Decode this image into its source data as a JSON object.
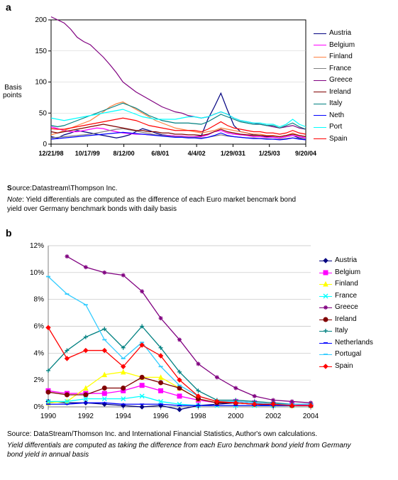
{
  "panel_a": {
    "label": "a",
    "ylabel_line1": "Basis",
    "ylabel_line2": "points",
    "ylim": [
      0,
      200
    ],
    "ytick_step": 50,
    "grid_color": "#cccccc",
    "background_color": "#ffffff",
    "axis_color": "#000000",
    "label_fontsize": 10,
    "x_ticks": [
      "12/21/98",
      "10/17/99",
      "8/12/00",
      "6/8/01",
      "4/4/02",
      "1/29/031",
      "1/25/03",
      "9/20/04"
    ],
    "legend_order": [
      "Austria",
      "Belgium",
      "Finland",
      "France",
      "Greece",
      "Ireland",
      "Italy",
      "Neth",
      "Port",
      "Spain"
    ],
    "series": {
      "Austria": {
        "color": "#000080",
        "values": [
          12,
          10,
          15,
          18,
          22,
          20,
          18,
          16,
          14,
          12,
          10,
          12,
          15,
          20,
          25,
          22,
          18,
          15,
          14,
          13,
          12,
          11,
          12,
          13,
          40,
          60,
          82,
          55,
          30,
          20,
          18,
          15,
          14,
          12,
          11,
          10,
          12,
          14,
          10,
          8
        ]
      },
      "Belgium": {
        "color": "#ff00ff",
        "values": [
          28,
          25,
          22,
          20,
          20,
          22,
          24,
          26,
          25,
          22,
          20,
          18,
          17,
          16,
          16,
          15,
          15,
          14,
          14,
          13,
          13,
          12,
          12,
          12,
          15,
          20,
          22,
          18,
          16,
          15,
          14,
          12,
          12,
          11,
          11,
          10,
          12,
          14,
          12,
          10
        ]
      },
      "Finland": {
        "color": "#ff8040",
        "values": [
          15,
          18,
          22,
          26,
          30,
          34,
          38,
          45,
          52,
          60,
          65,
          68,
          62,
          56,
          50,
          44,
          38,
          34,
          30,
          26,
          24,
          22,
          20,
          18,
          20,
          22,
          26,
          24,
          22,
          20,
          18,
          16,
          16,
          14,
          14,
          12,
          14,
          18,
          14,
          12
        ]
      },
      "France": {
        "color": "#808080",
        "values": [
          10,
          11,
          12,
          13,
          14,
          15,
          16,
          18,
          20,
          22,
          24,
          25,
          23,
          21,
          19,
          17,
          15,
          14,
          13,
          12,
          12,
          11,
          11,
          10,
          11,
          13,
          15,
          13,
          12,
          11,
          10,
          10,
          9,
          9,
          8,
          8,
          9,
          10,
          9,
          8
        ]
      },
      "Greece": {
        "color": "#800080",
        "values": [
          205,
          200,
          195,
          185,
          172,
          165,
          160,
          150,
          140,
          128,
          115,
          100,
          92,
          84,
          78,
          72,
          66,
          60,
          56,
          52,
          50,
          46,
          44,
          42,
          44,
          48,
          52,
          48,
          42,
          38,
          36,
          34,
          32,
          30,
          28,
          26,
          28,
          30,
          26,
          24
        ]
      },
      "Ireland": {
        "color": "#800000",
        "values": [
          20,
          18,
          20,
          22,
          24,
          26,
          28,
          30,
          32,
          30,
          28,
          26,
          24,
          22,
          22,
          20,
          20,
          18,
          18,
          16,
          16,
          15,
          15,
          14,
          16,
          20,
          24,
          20,
          18,
          16,
          15,
          14,
          14,
          13,
          13,
          12,
          14,
          16,
          14,
          12
        ]
      },
      "Italy": {
        "color": "#008080",
        "values": [
          30,
          28,
          30,
          34,
          38,
          42,
          46,
          50,
          54,
          58,
          62,
          66,
          62,
          58,
          52,
          46,
          42,
          38,
          36,
          34,
          34,
          34,
          33,
          32,
          36,
          42,
          48,
          44,
          40,
          36,
          34,
          32,
          32,
          30,
          30,
          26,
          30,
          34,
          28,
          24
        ]
      },
      "Neth": {
        "color": "#0000ff",
        "values": [
          8,
          9,
          10,
          11,
          12,
          13,
          14,
          15,
          16,
          17,
          18,
          19,
          18,
          17,
          16,
          15,
          14,
          13,
          12,
          11,
          11,
          10,
          10,
          9,
          11,
          14,
          18,
          14,
          12,
          11,
          10,
          9,
          9,
          8,
          8,
          7,
          8,
          10,
          8,
          7
        ]
      },
      "Port": {
        "color": "#00ffff",
        "values": [
          42,
          40,
          38,
          40,
          42,
          44,
          46,
          48,
          50,
          52,
          54,
          56,
          52,
          48,
          44,
          42,
          40,
          40,
          40,
          40,
          42,
          44,
          44,
          42,
          44,
          48,
          52,
          48,
          42,
          38,
          36,
          34,
          34,
          32,
          32,
          28,
          32,
          40,
          32,
          28
        ]
      },
      "Spain": {
        "color": "#ff0000",
        "values": [
          25,
          24,
          24,
          26,
          28,
          30,
          32,
          34,
          36,
          38,
          40,
          42,
          40,
          38,
          34,
          30,
          28,
          26,
          24,
          22,
          22,
          22,
          22,
          20,
          24,
          30,
          36,
          30,
          26,
          24,
          22,
          20,
          20,
          18,
          18,
          16,
          18,
          22,
          18,
          16
        ]
      }
    },
    "source_label": "S",
    "source_text": "ource:Datastream\\Thompson Inc.",
    "note_label": "Note",
    "note_text1": ":  Yield differentials are computed as the difference of each Euro market bencmark bond",
    "note_text2": "yield  over  Germany benchmark bonds with daily basis"
  },
  "panel_b": {
    "label": "b",
    "ylim": [
      0,
      12
    ],
    "ytick_step": 2,
    "grid_color": "#c0c0c0",
    "background_color": "#ffffff",
    "axis_color": "#808080",
    "label_fontsize": 10,
    "x_ticks": [
      "1990",
      "1992",
      "1994",
      "1996",
      "1998",
      "2000",
      "2002",
      "2004"
    ],
    "legend_order": [
      "Austria",
      "Belgium",
      "Finland",
      "France",
      "Greece",
      "Ireland",
      "Italy",
      "Netherlands",
      "Portugal",
      "Spain"
    ],
    "series": {
      "Austria": {
        "color": "#000080",
        "marker": "diamond",
        "values": [
          0.4,
          0.3,
          0.3,
          0.2,
          0.1,
          0.0,
          0.1,
          -0.2,
          0.1,
          0.2,
          0.3,
          0.2,
          0.1,
          0.1,
          0.1
        ]
      },
      "Belgium": {
        "color": "#ff00ff",
        "marker": "square",
        "values": [
          1.2,
          1.0,
          1.0,
          1.0,
          1.2,
          1.6,
          1.2,
          0.8,
          0.5,
          0.3,
          0.4,
          0.3,
          0.2,
          0.2,
          0.1
        ]
      },
      "Finland": {
        "color": "#ffff00",
        "marker": "triangle",
        "values": [
          0.3,
          0.4,
          1.4,
          2.4,
          2.6,
          2.2,
          2.2,
          1.4,
          0.6,
          0.3,
          0.3,
          0.2,
          0.2,
          0.1,
          0.1
        ]
      },
      "France": {
        "color": "#00ffff",
        "marker": "x",
        "values": [
          0.4,
          0.4,
          0.6,
          0.6,
          0.6,
          0.8,
          0.4,
          0.2,
          0.1,
          0.1,
          0.1,
          0.1,
          0.1,
          0.1,
          0.1
        ]
      },
      "Greece": {
        "color": "#800080",
        "marker": "star",
        "values": [
          null,
          11.2,
          10.4,
          10.0,
          9.8,
          8.6,
          6.6,
          5.0,
          3.2,
          2.2,
          1.4,
          0.8,
          0.5,
          0.4,
          0.3
        ]
      },
      "Ireland": {
        "color": "#800000",
        "marker": "circle",
        "values": [
          1.1,
          0.9,
          0.9,
          1.4,
          1.4,
          2.2,
          1.8,
          1.4,
          0.6,
          0.3,
          0.3,
          0.2,
          0.2,
          0.1,
          0.1
        ]
      },
      "Italy": {
        "color": "#008080",
        "marker": "plus",
        "values": [
          2.7,
          4.2,
          5.2,
          5.8,
          4.4,
          6.0,
          4.4,
          2.6,
          1.2,
          0.5,
          0.5,
          0.4,
          0.3,
          0.2,
          0.2
        ]
      },
      "Netherlands": {
        "color": "#0000ff",
        "marker": "dash",
        "values": [
          0.2,
          0.2,
          0.3,
          0.3,
          0.2,
          0.2,
          0.2,
          0.1,
          0.1,
          0.1,
          0.1,
          0.1,
          0.1,
          0.1,
          0.1
        ]
      },
      "Portugal": {
        "color": "#33ccff",
        "marker": "dash",
        "values": [
          9.7,
          8.4,
          7.6,
          5.0,
          3.6,
          4.8,
          3.0,
          1.6,
          0.8,
          0.4,
          0.4,
          0.3,
          0.2,
          0.2,
          0.2
        ]
      },
      "Spain": {
        "color": "#ff0000",
        "marker": "diamond",
        "values": [
          5.9,
          3.6,
          4.2,
          4.2,
          3.0,
          4.6,
          3.8,
          2.0,
          0.8,
          0.4,
          0.3,
          0.2,
          0.2,
          0.1,
          0.1
        ]
      }
    },
    "source_text": "Source: DataStream/Thomson Inc. and International Financial Statistics, Author's own calculations.",
    "note_text1": "Yield differentials are computed as taking the difference from each Euro benchmark bond yield from Germany",
    "note_text2": "bond yield in annual basis"
  }
}
